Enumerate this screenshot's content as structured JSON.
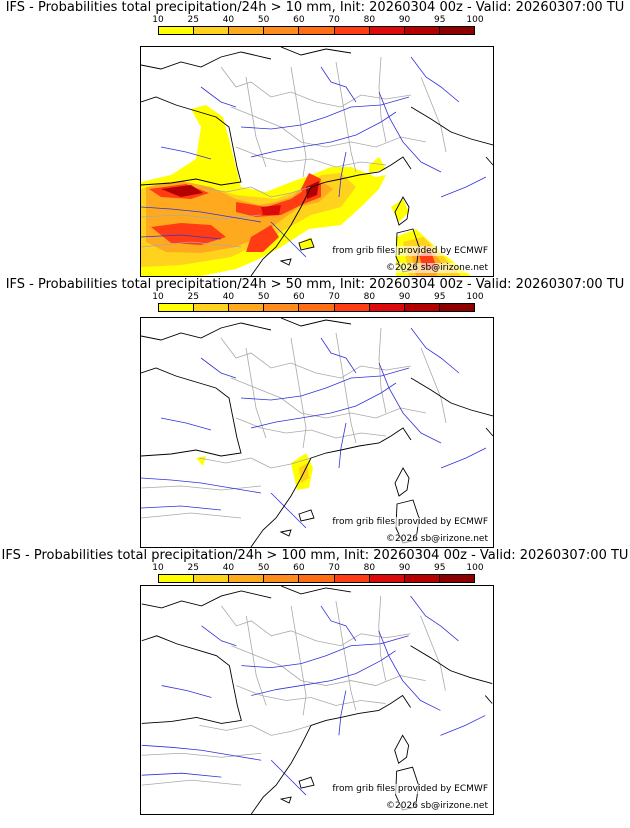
{
  "panels": [
    {
      "title": "IFS - Probabilities total precipitation/24h > 10 mm, Init: 20260304 00z - Valid: 20260307:00 TU",
      "credit_source": "from grib files provided by ECMWF",
      "credit_copyright": "©2026 sb@irizone.net"
    },
    {
      "title": "IFS - Probabilities total precipitation/24h > 50 mm, Init: 20260304 00z - Valid: 20260307:00 TU",
      "credit_source": "from grib files provided by ECMWF",
      "credit_copyright": "©2026 sb@irizone.net"
    },
    {
      "title": "IFS - Probabilities total precipitation/24h > 100 mm, Init: 20260304 00z - Valid: 20260307:00 TU",
      "credit_source": "from grib files provided by ECMWF",
      "credit_copyright": "©2026 sb@irizone.net"
    }
  ],
  "colorbar": {
    "ticks": [
      "10",
      "25",
      "40",
      "50",
      "60",
      "70",
      "80",
      "90",
      "95",
      "100"
    ],
    "colors": [
      "#ffff00",
      "#ffd21e",
      "#ffaa1e",
      "#ff8c1e",
      "#ff6e14",
      "#ff3c14",
      "#dc0a0a",
      "#b40000",
      "#8c0000"
    ]
  },
  "palette": {
    "coast": "#000000",
    "borders": "#a9a9a9",
    "rivers": "#3232dc"
  }
}
